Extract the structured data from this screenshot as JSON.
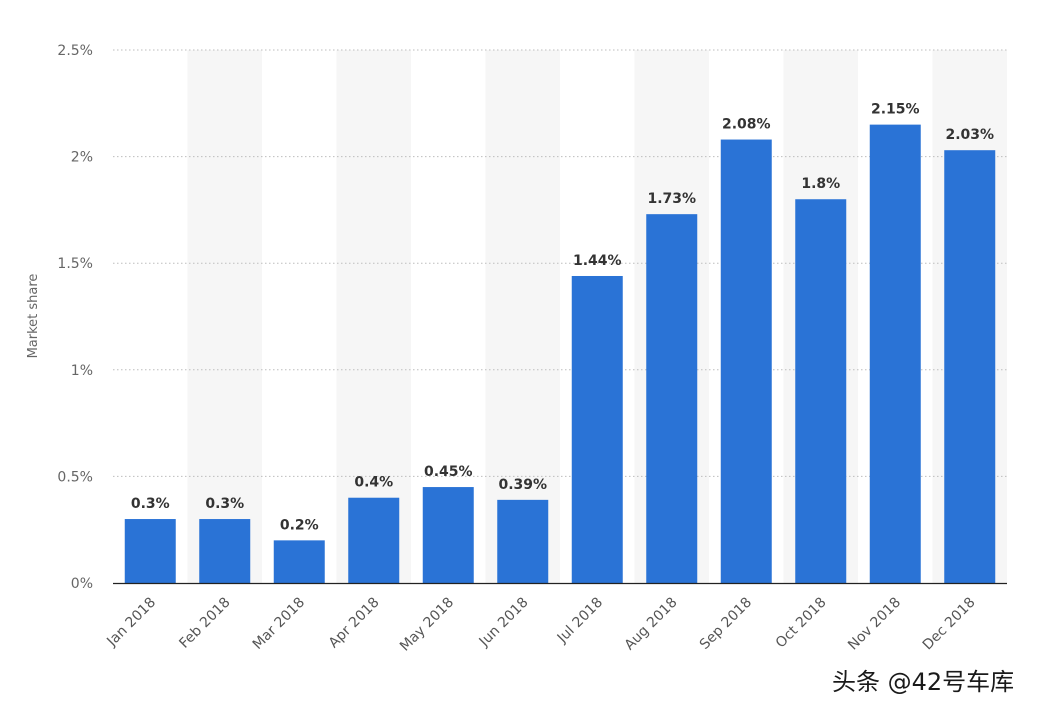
{
  "chart_data": {
    "type": "bar",
    "categories": [
      "Jan 2018",
      "Feb 2018",
      "Mar 2018",
      "Apr 2018",
      "May 2018",
      "Jun 2018",
      "Jul 2018",
      "Aug 2018",
      "Sep 2018",
      "Oct 2018",
      "Nov 2018",
      "Dec 2018"
    ],
    "values": [
      0.3,
      0.3,
      0.2,
      0.4,
      0.45,
      0.39,
      1.44,
      1.73,
      2.08,
      1.8,
      2.15,
      2.03
    ],
    "data_labels": [
      "0.3%",
      "0.3%",
      "0.2%",
      "0.4%",
      "0.45%",
      "0.39%",
      "1.44%",
      "1.73%",
      "2.08%",
      "1.8%",
      "2.15%",
      "2.03%"
    ],
    "yticks": [
      0,
      0.5,
      1,
      1.5,
      2,
      2.5
    ],
    "ytick_labels": [
      "0%",
      "0.5%",
      "1%",
      "1.5%",
      "2%",
      "2.5%"
    ],
    "ylim": [
      0,
      2.5
    ],
    "ylabel": "Market share",
    "xlabel": "",
    "title": "",
    "grid": "horizontal-dotted",
    "bar_color": "#2a73d6",
    "band_color": "#f6f6f6"
  },
  "watermark": {
    "text": "头条 @42号车库"
  }
}
